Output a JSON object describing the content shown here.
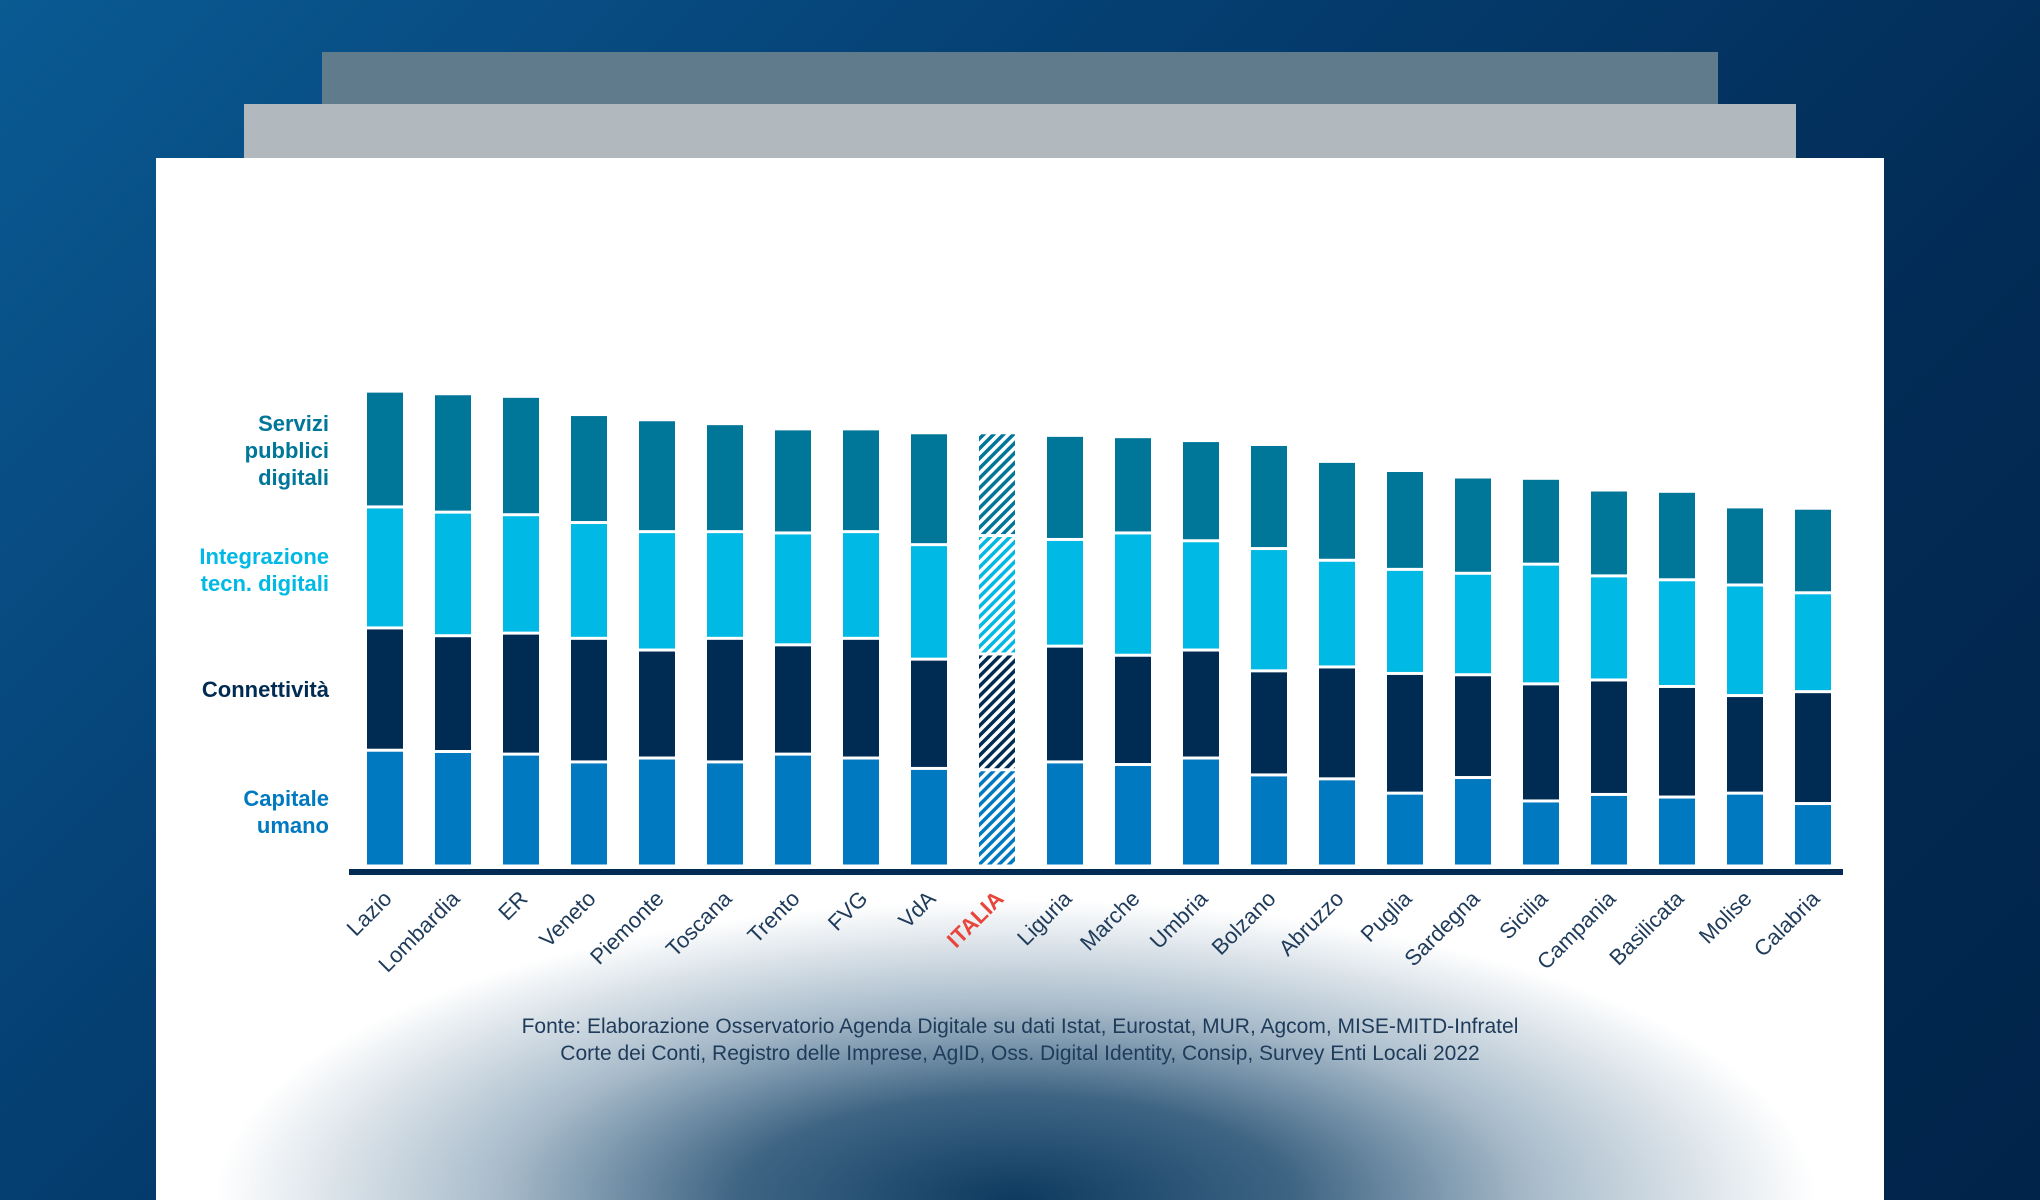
{
  "chart_data": {
    "type": "bar",
    "stacked": true,
    "categories": [
      "Lazio",
      "Lombardia",
      "ER",
      "Veneto",
      "Piemonte",
      "Toscana",
      "Trento",
      "FVG",
      "VdA",
      "ITALIA",
      "Liguria",
      "Marche",
      "Umbria",
      "Bolzano",
      "Abruzzo",
      "Puglia",
      "Sardegna",
      "Sicilia",
      "Campania",
      "Basilicata",
      "Molise",
      "Calabria"
    ],
    "highlight_category": "ITALIA",
    "highlight_color": "#e8463c",
    "series": [
      {
        "name": "Capitale umano",
        "color": "#0079c1",
        "values": [
          89,
          88,
          86,
          80,
          83,
          80,
          86,
          83,
          75,
          74,
          80,
          78,
          83,
          70,
          67,
          56,
          68,
          50,
          55,
          53,
          56,
          48
        ]
      },
      {
        "name": "Connettività",
        "color": "#002b52",
        "values": [
          94,
          89,
          93,
          95,
          83,
          95,
          84,
          92,
          84,
          89,
          89,
          84,
          83,
          80,
          86,
          92,
          79,
          90,
          88,
          85,
          75,
          86
        ]
      },
      {
        "name": "Integrazione tecn. digitali",
        "color": "#00b9e4",
        "values": [
          93,
          95,
          91,
          89,
          91,
          82,
          86,
          82,
          88,
          91,
          82,
          94,
          84,
          94,
          82,
          80,
          78,
          92,
          80,
          82,
          85,
          76
        ]
      },
      {
        "name": "Servizi pubblici digitali",
        "color": "#007699",
        "values": [
          89,
          91,
          91,
          83,
          86,
          83,
          80,
          79,
          86,
          79,
          80,
          74,
          77,
          80,
          76,
          76,
          74,
          66,
          66,
          68,
          60,
          65
        ]
      }
    ],
    "legend_placement": "left",
    "grid": false,
    "xlabel": "",
    "ylabel": ""
  },
  "legend_labels": {
    "servizi": [
      "Servizi",
      "pubblici",
      "digitali"
    ],
    "integrazione": [
      "Integrazione",
      "tecn. digitali"
    ],
    "connettivita": [
      "Connettività"
    ],
    "capitale": [
      "Capitale",
      "umano"
    ]
  },
  "source": {
    "line1": "Fonte: Elaborazione Osservatorio Agenda Digitale su dati Istat, Eurostat, MUR, Agcom, MISE-MITD-Infratel",
    "line2": "Corte dei Conti, Registro delle Imprese, AgID, Oss. Digital Identity, Consip, Survey Enti Locali 2022"
  }
}
